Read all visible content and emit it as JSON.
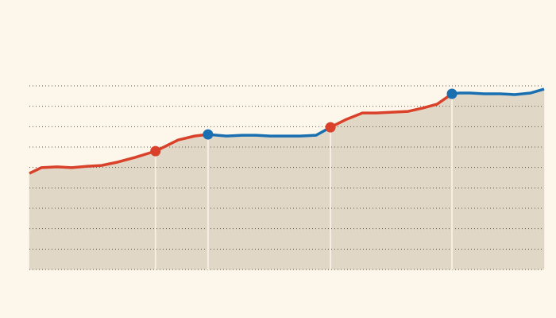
{
  "chart_data": {
    "type": "line",
    "xlim": [
      0,
      100
    ],
    "ylim": [
      0,
      9
    ],
    "yticks": [
      0,
      1,
      2,
      3,
      4,
      5,
      6,
      7,
      8,
      9
    ],
    "grid": true,
    "area_color": "#e1d7c6",
    "series": [
      {
        "color": "#d9412a",
        "x": [
          0,
          2.3,
          5.4,
          8.2,
          11.3,
          14,
          17.1,
          20.5,
          24.5,
          28.9,
          32.1,
          34.7
        ],
        "values": [
          4.71,
          4.99,
          5.03,
          4.99,
          5.06,
          5.1,
          5.26,
          5.49,
          5.8,
          6.35,
          6.54,
          6.62
        ]
      },
      {
        "color": "#1a6fb0",
        "x": [
          34.7,
          38.3,
          41.4,
          44,
          46.8,
          52.6,
          55.7,
          58.5
        ],
        "values": [
          6.62,
          6.54,
          6.58,
          6.58,
          6.54,
          6.54,
          6.58,
          6.97
        ]
      },
      {
        "color": "#d9412a",
        "x": [
          58.5,
          61.6,
          64.7,
          67.4,
          70.5,
          73.6,
          76.4,
          79.2,
          82.1
        ],
        "values": [
          6.97,
          7.36,
          7.67,
          7.67,
          7.71,
          7.75,
          7.91,
          8.1,
          8.61
        ]
      },
      {
        "color": "#1a6fb0",
        "x": [
          82.1,
          83.5,
          85.6,
          88.4,
          91.5,
          94.3,
          97.4,
          100
        ],
        "values": [
          8.61,
          8.65,
          8.65,
          8.61,
          8.61,
          8.57,
          8.65,
          8.84
        ]
      }
    ],
    "markers": [
      {
        "x": 24.5,
        "value": 5.8,
        "color": "#d9412a"
      },
      {
        "x": 34.7,
        "value": 6.62,
        "color": "#1a6fb0"
      },
      {
        "x": 58.5,
        "value": 6.97,
        "color": "#d9412a"
      },
      {
        "x": 82.1,
        "value": 8.61,
        "color": "#1a6fb0"
      }
    ]
  }
}
